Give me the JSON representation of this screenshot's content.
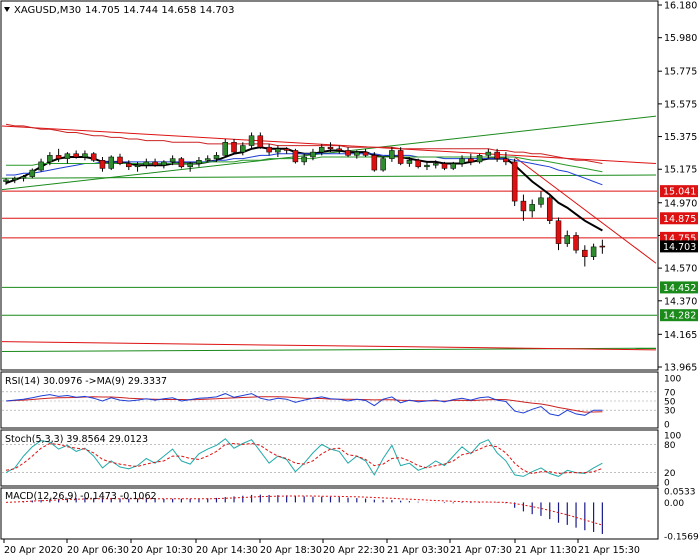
{
  "header": {
    "symbol_text": "XAGUSD,M30",
    "ohlc_text": "14.705 14.744 14.658 14.703"
  },
  "colors": {
    "bull": "#2e8b2e",
    "bear": "#dd1111",
    "wick": "#000000",
    "ma_fast": "#000000",
    "ma_blue": "#1f3fd6",
    "ma_red": "#cc2222",
    "ma_green": "#2a9a2a",
    "channel": "#1a8a1a",
    "res_line": "#dd1111",
    "sup_line": "#1a8a1a",
    "rsi_line": "#1f3fd6",
    "rsi_ma": "#cc2222",
    "stoch_main": "#22aaaa",
    "stoch_signal": "#dd1111",
    "macd_hist": "#1a1a8a",
    "macd_signal": "#dd1111",
    "price_tag": "#000000"
  },
  "price_axis": {
    "ticks": [
      "16.180",
      "15.980",
      "15.775",
      "15.575",
      "15.375",
      "15.175",
      "14.970",
      "14.770",
      "14.570",
      "14.370",
      "14.165",
      "13.965"
    ]
  },
  "levels": [
    {
      "label": "15.041",
      "value": 15.041,
      "kind": "resistance"
    },
    {
      "label": "14.875",
      "value": 14.875,
      "kind": "resistance"
    },
    {
      "label": "14.755",
      "value": 14.755,
      "kind": "resistance"
    },
    {
      "label": "14.452",
      "value": 14.452,
      "kind": "support"
    },
    {
      "label": "14.282",
      "value": 14.282,
      "kind": "support"
    }
  ],
  "current_price": {
    "label": "14.703",
    "value": 14.703
  },
  "rsi": {
    "label": "RSI(14) 30.0976  ->MA(9) 29.3337",
    "ticks": [
      "100",
      "70",
      "50",
      "30",
      "0"
    ]
  },
  "stoch": {
    "label": "Stoch(5,3,3) 39.8564 29.0123",
    "ticks": [
      "100",
      "80",
      "20",
      "0"
    ]
  },
  "macd": {
    "label": "MACD(12,26,9) -0.1473 -0.1062",
    "ticks": [
      "0.0533",
      "0.00",
      "-0.1569"
    ]
  },
  "time_axis": {
    "labels": [
      "20 Apr 2020",
      "20 Apr 06:30",
      "20 Apr 10:30",
      "20 Apr 14:30",
      "20 Apr 18:30",
      "20 Apr 22:30",
      "21 Apr 03:30",
      "21 Apr 07:30",
      "21 Apr 11:30",
      "21 Apr 15:30"
    ]
  },
  "chart_data": {
    "type": "candlestick",
    "symbol": "XAGUSD",
    "timeframe": "M30",
    "ohlc": [
      [
        15.1,
        15.12,
        15.08,
        15.11
      ],
      [
        15.11,
        15.13,
        15.09,
        15.12
      ],
      [
        15.12,
        15.14,
        15.1,
        15.13
      ],
      [
        15.13,
        15.18,
        15.12,
        15.17
      ],
      [
        15.17,
        15.24,
        15.16,
        15.22
      ],
      [
        15.22,
        15.28,
        15.2,
        15.26
      ],
      [
        15.26,
        15.3,
        15.22,
        15.24
      ],
      [
        15.24,
        15.28,
        15.21,
        15.27
      ],
      [
        15.27,
        15.29,
        15.24,
        15.25
      ],
      [
        15.25,
        15.29,
        15.23,
        15.27
      ],
      [
        15.27,
        15.28,
        15.22,
        15.23
      ],
      [
        15.23,
        15.25,
        15.16,
        15.18
      ],
      [
        15.18,
        15.26,
        15.17,
        15.25
      ],
      [
        15.25,
        15.27,
        15.2,
        15.21
      ],
      [
        15.21,
        15.23,
        15.17,
        15.19
      ],
      [
        15.19,
        15.22,
        15.16,
        15.2
      ],
      [
        15.2,
        15.24,
        15.18,
        15.22
      ],
      [
        15.22,
        15.24,
        15.19,
        15.2
      ],
      [
        15.2,
        15.23,
        15.18,
        15.22
      ],
      [
        15.22,
        15.26,
        15.2,
        15.24
      ],
      [
        15.24,
        15.25,
        15.18,
        15.19
      ],
      [
        15.19,
        15.22,
        15.16,
        15.21
      ],
      [
        15.21,
        15.25,
        15.19,
        15.23
      ],
      [
        15.23,
        15.26,
        15.22,
        15.24
      ],
      [
        15.24,
        15.28,
        15.22,
        15.26
      ],
      [
        15.26,
        15.36,
        15.25,
        15.34
      ],
      [
        15.34,
        15.36,
        15.27,
        15.28
      ],
      [
        15.28,
        15.34,
        15.26,
        15.32
      ],
      [
        15.32,
        15.4,
        15.3,
        15.38
      ],
      [
        15.38,
        15.4,
        15.3,
        15.31
      ],
      [
        15.31,
        15.33,
        15.26,
        15.28
      ],
      [
        15.28,
        15.32,
        15.25,
        15.3
      ],
      [
        15.3,
        15.31,
        15.27,
        15.29
      ],
      [
        15.29,
        15.3,
        15.21,
        15.22
      ],
      [
        15.22,
        15.27,
        15.2,
        15.25
      ],
      [
        15.25,
        15.3,
        15.23,
        15.28
      ],
      [
        15.28,
        15.33,
        15.26,
        15.31
      ],
      [
        15.31,
        15.34,
        15.28,
        15.3
      ],
      [
        15.3,
        15.32,
        15.27,
        15.29
      ],
      [
        15.29,
        15.31,
        15.25,
        15.26
      ],
      [
        15.26,
        15.29,
        15.24,
        15.28
      ],
      [
        15.28,
        15.3,
        15.25,
        15.26
      ],
      [
        15.26,
        15.28,
        15.16,
        15.17
      ],
      [
        15.17,
        15.25,
        15.16,
        15.24
      ],
      [
        15.24,
        15.31,
        15.22,
        15.29
      ],
      [
        15.29,
        15.31,
        15.2,
        15.21
      ],
      [
        15.21,
        15.25,
        15.19,
        15.23
      ],
      [
        15.23,
        15.24,
        15.18,
        15.19
      ],
      [
        15.19,
        15.22,
        15.17,
        15.2
      ],
      [
        15.2,
        15.23,
        15.18,
        15.21
      ],
      [
        15.21,
        15.22,
        15.17,
        15.18
      ],
      [
        15.18,
        15.22,
        15.17,
        15.21
      ],
      [
        15.21,
        15.26,
        15.19,
        15.24
      ],
      [
        15.24,
        15.27,
        15.2,
        15.22
      ],
      [
        15.22,
        15.27,
        15.21,
        15.26
      ],
      [
        15.26,
        15.3,
        15.24,
        15.28
      ],
      [
        15.28,
        15.3,
        15.22,
        15.24
      ],
      [
        15.24,
        15.28,
        15.2,
        15.22
      ],
      [
        15.22,
        15.24,
        14.95,
        14.98
      ],
      [
        14.98,
        15.02,
        14.86,
        14.92
      ],
      [
        14.92,
        14.99,
        14.88,
        14.96
      ],
      [
        14.96,
        15.04,
        14.94,
        15.0
      ],
      [
        15.0,
        15.01,
        14.84,
        14.86
      ],
      [
        14.86,
        14.88,
        14.68,
        14.72
      ],
      [
        14.72,
        14.8,
        14.7,
        14.77
      ],
      [
        14.77,
        14.79,
        14.66,
        14.68
      ],
      [
        14.68,
        14.71,
        14.58,
        14.64
      ],
      [
        14.64,
        14.72,
        14.62,
        14.7
      ],
      [
        14.705,
        14.744,
        14.658,
        14.703
      ]
    ],
    "moving_averages": [
      {
        "name": "fast",
        "values": [
          15.09,
          15.11,
          15.13,
          15.16,
          15.19,
          15.22,
          15.24,
          15.25,
          15.25,
          15.25,
          15.24,
          15.22,
          15.22,
          15.22,
          15.21,
          15.2,
          15.2,
          15.2,
          15.2,
          15.21,
          15.21,
          15.21,
          15.21,
          15.22,
          15.23,
          15.25,
          15.27,
          15.28,
          15.3,
          15.31,
          15.3,
          15.3,
          15.3,
          15.28,
          15.27,
          15.27,
          15.28,
          15.29,
          15.29,
          15.28,
          15.28,
          15.28,
          15.26,
          15.25,
          15.26,
          15.25,
          15.24,
          15.23,
          15.22,
          15.22,
          15.21,
          15.21,
          15.21,
          15.22,
          15.23,
          15.24,
          15.24,
          15.24,
          15.2,
          15.15,
          15.1,
          15.06,
          15.02,
          14.97,
          14.94,
          14.9,
          14.86,
          14.83,
          14.8
        ]
      },
      {
        "name": "blue",
        "values": [
          15.14,
          15.14,
          15.15,
          15.15,
          15.16,
          15.17,
          15.18,
          15.19,
          15.2,
          15.21,
          15.21,
          15.22,
          15.22,
          15.22,
          15.22,
          15.22,
          15.22,
          15.22,
          15.22,
          15.22,
          15.22,
          15.22,
          15.22,
          15.22,
          15.23,
          15.23,
          15.24,
          15.24,
          15.25,
          15.26,
          15.26,
          15.27,
          15.27,
          15.27,
          15.27,
          15.27,
          15.27,
          15.27,
          15.27,
          15.27,
          15.27,
          15.27,
          15.27,
          15.26,
          15.26,
          15.26,
          15.26,
          15.25,
          15.25,
          15.25,
          15.24,
          15.24,
          15.24,
          15.24,
          15.24,
          15.24,
          15.24,
          15.24,
          15.23,
          15.22,
          15.21,
          15.2,
          15.19,
          15.17,
          15.16,
          15.14,
          15.12,
          15.1,
          15.08
        ]
      },
      {
        "name": "red",
        "values": [
          15.45,
          15.44,
          15.44,
          15.43,
          15.42,
          15.42,
          15.41,
          15.4,
          15.4,
          15.39,
          15.38,
          15.38,
          15.37,
          15.37,
          15.36,
          15.36,
          15.35,
          15.35,
          15.35,
          15.34,
          15.34,
          15.34,
          15.34,
          15.33,
          15.33,
          15.33,
          15.33,
          15.33,
          15.33,
          15.33,
          15.33,
          15.32,
          15.32,
          15.32,
          15.32,
          15.32,
          15.32,
          15.32,
          15.32,
          15.31,
          15.31,
          15.31,
          15.31,
          15.31,
          15.31,
          15.3,
          15.3,
          15.3,
          15.3,
          15.3,
          15.3,
          15.3,
          15.3,
          15.3,
          15.3,
          15.3,
          15.29,
          15.29,
          15.28,
          15.28,
          15.27,
          15.27,
          15.26,
          15.25,
          15.24,
          15.23,
          15.23,
          15.22,
          15.21
        ]
      },
      {
        "name": "green",
        "values": [
          15.2,
          15.2,
          15.2,
          15.2,
          15.21,
          15.21,
          15.21,
          15.21,
          15.21,
          15.21,
          15.21,
          15.21,
          15.21,
          15.21,
          15.21,
          15.21,
          15.21,
          15.21,
          15.21,
          15.21,
          15.21,
          15.21,
          15.21,
          15.22,
          15.22,
          15.22,
          15.22,
          15.23,
          15.23,
          15.23,
          15.24,
          15.24,
          15.24,
          15.24,
          15.24,
          15.24,
          15.25,
          15.25,
          15.25,
          15.25,
          15.25,
          15.25,
          15.25,
          15.25,
          15.25,
          15.25,
          15.25,
          15.25,
          15.25,
          15.25,
          15.25,
          15.25,
          15.25,
          15.25,
          15.25,
          15.25,
          15.25,
          15.25,
          15.25,
          15.24,
          15.23,
          15.23,
          15.22,
          15.21,
          15.2,
          15.19,
          15.18,
          15.17,
          15.16
        ]
      }
    ],
    "trendlines": [
      {
        "kind": "channel",
        "start": 15.05,
        "end": 15.5
      },
      {
        "kind": "channel",
        "start": 14.06,
        "end": 14.08
      },
      {
        "kind": "channel",
        "start": 15.12,
        "end": 15.14
      },
      {
        "kind": "resistance",
        "start": 15.44,
        "end": 15.21
      },
      {
        "kind": "resistance",
        "start": 14.12,
        "end": 14.07
      },
      {
        "kind": "resistance",
        "start_bar": 58,
        "start": 15.25,
        "end": 14.6
      }
    ],
    "rsi": {
      "value": 30.0976,
      "ma": 29.3337,
      "ylim": [
        0,
        100
      ],
      "levels": [
        70,
        50,
        30
      ],
      "series": [
        50,
        52,
        54,
        57,
        61,
        64,
        60,
        62,
        58,
        60,
        56,
        50,
        57,
        52,
        50,
        52,
        55,
        52,
        55,
        57,
        50,
        53,
        56,
        57,
        59,
        66,
        58,
        62,
        66,
        56,
        52,
        56,
        54,
        47,
        52,
        56,
        59,
        55,
        54,
        50,
        54,
        51,
        40,
        54,
        59,
        46,
        52,
        48,
        50,
        52,
        48,
        53,
        56,
        52,
        57,
        59,
        52,
        49,
        28,
        24,
        32,
        38,
        22,
        18,
        30,
        22,
        19,
        30,
        30
      ]
    },
    "stochastic": {
      "main": 39.8564,
      "signal": 29.0123,
      "ylim": [
        0,
        100
      ],
      "levels": [
        80,
        20
      ],
      "series_main": [
        20,
        30,
        55,
        75,
        88,
        85,
        70,
        78,
        65,
        72,
        55,
        30,
        45,
        32,
        28,
        35,
        50,
        40,
        55,
        70,
        45,
        38,
        60,
        70,
        78,
        92,
        72,
        82,
        90,
        65,
        40,
        55,
        48,
        22,
        40,
        62,
        80,
        70,
        65,
        40,
        55,
        45,
        15,
        50,
        78,
        35,
        40,
        25,
        32,
        45,
        35,
        55,
        75,
        60,
        82,
        90,
        62,
        45,
        15,
        12,
        22,
        30,
        18,
        12,
        25,
        20,
        18,
        30,
        40
      ],
      "series_signal": [
        25,
        28,
        40,
        55,
        72,
        82,
        80,
        75,
        72,
        70,
        62,
        48,
        42,
        38,
        35,
        33,
        38,
        42,
        45,
        55,
        55,
        50,
        48,
        55,
        65,
        80,
        82,
        80,
        82,
        78,
        65,
        55,
        50,
        40,
        38,
        45,
        60,
        70,
        72,
        58,
        55,
        48,
        35,
        38,
        50,
        52,
        45,
        35,
        30,
        35,
        38,
        45,
        58,
        62,
        70,
        78,
        75,
        62,
        40,
        25,
        18,
        22,
        22,
        18,
        20,
        20,
        20,
        22,
        29
      ]
    },
    "macd": {
      "value": -0.1473,
      "signal_value": -0.1062,
      "ylim": [
        -0.1569,
        0.0533
      ],
      "histogram": [
        0.0,
        0.003,
        0.006,
        0.009,
        0.012,
        0.015,
        0.017,
        0.019,
        0.02,
        0.021,
        0.021,
        0.019,
        0.019,
        0.018,
        0.017,
        0.016,
        0.016,
        0.016,
        0.016,
        0.017,
        0.017,
        0.017,
        0.018,
        0.019,
        0.021,
        0.025,
        0.028,
        0.031,
        0.035,
        0.036,
        0.035,
        0.034,
        0.033,
        0.03,
        0.028,
        0.027,
        0.027,
        0.026,
        0.025,
        0.022,
        0.02,
        0.018,
        0.013,
        0.011,
        0.011,
        0.008,
        0.006,
        0.003,
        0.001,
        -0.001,
        -0.003,
        -0.004,
        -0.003,
        -0.003,
        -0.002,
        -0.001,
        -0.002,
        -0.004,
        -0.025,
        -0.042,
        -0.055,
        -0.063,
        -0.078,
        -0.095,
        -0.105,
        -0.118,
        -0.13,
        -0.138,
        -0.1473
      ],
      "signal": [
        0.0,
        0.002,
        0.004,
        0.006,
        0.008,
        0.01,
        0.012,
        0.014,
        0.015,
        0.016,
        0.017,
        0.017,
        0.017,
        0.017,
        0.017,
        0.017,
        0.017,
        0.017,
        0.017,
        0.017,
        0.017,
        0.017,
        0.017,
        0.017,
        0.018,
        0.019,
        0.021,
        0.023,
        0.025,
        0.027,
        0.028,
        0.029,
        0.03,
        0.03,
        0.03,
        0.03,
        0.029,
        0.029,
        0.028,
        0.027,
        0.026,
        0.025,
        0.023,
        0.021,
        0.019,
        0.017,
        0.015,
        0.013,
        0.011,
        0.009,
        0.007,
        0.005,
        0.004,
        0.003,
        0.002,
        0.002,
        0.001,
        0.0,
        -0.005,
        -0.012,
        -0.02,
        -0.028,
        -0.038,
        -0.048,
        -0.058,
        -0.07,
        -0.082,
        -0.094,
        -0.1062
      ]
    }
  }
}
